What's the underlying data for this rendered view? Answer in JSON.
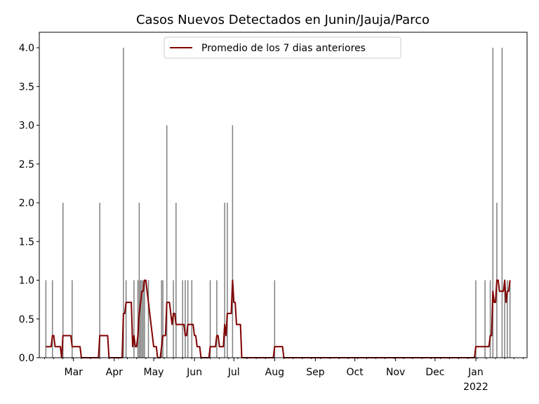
{
  "chart_data": {
    "type": "bar",
    "title": "Casos Nuevos Detectados en Junin/Jauja/Parco",
    "xlabel": "",
    "ylabel": "",
    "x_range": [
      "2021-02-03",
      "2022-02-09"
    ],
    "ylim": [
      0,
      4.2
    ],
    "y_ticks": [
      "0.0",
      "0.5",
      "1.0",
      "1.5",
      "2.0",
      "2.5",
      "3.0",
      "3.5",
      "4.0"
    ],
    "x_ticks": [
      {
        "date": "2021-03-01",
        "label": "Mar"
      },
      {
        "date": "2021-04-01",
        "label": "Apr"
      },
      {
        "date": "2021-05-01",
        "label": "May"
      },
      {
        "date": "2021-06-01",
        "label": "Jun"
      },
      {
        "date": "2021-07-01",
        "label": "Jul"
      },
      {
        "date": "2021-08-01",
        "label": "Aug"
      },
      {
        "date": "2021-09-01",
        "label": "Sep"
      },
      {
        "date": "2021-10-01",
        "label": "Oct"
      },
      {
        "date": "2021-11-01",
        "label": "Nov"
      },
      {
        "date": "2021-12-01",
        "label": "Dec"
      },
      {
        "date": "2022-01-01",
        "label": "Jan",
        "sublabel": "2022"
      }
    ],
    "grid": false,
    "legend_position": "upper center",
    "bar_color": "#808080",
    "line_color": "#800000",
    "series": [
      {
        "name": "",
        "kind": "bars",
        "points": [
          [
            "2021-02-08",
            1
          ],
          [
            "2021-02-13",
            1
          ],
          [
            "2021-02-21",
            2
          ],
          [
            "2021-02-28",
            1
          ],
          [
            "2021-03-21",
            2
          ],
          [
            "2021-04-08",
            4
          ],
          [
            "2021-04-10",
            1
          ],
          [
            "2021-04-16",
            1
          ],
          [
            "2021-04-19",
            1
          ],
          [
            "2021-04-20",
            2
          ],
          [
            "2021-04-21",
            1
          ],
          [
            "2021-04-22",
            1
          ],
          [
            "2021-04-23",
            1
          ],
          [
            "2021-04-24",
            1
          ],
          [
            "2021-04-27",
            1
          ],
          [
            "2021-05-07",
            1
          ],
          [
            "2021-05-08",
            1
          ],
          [
            "2021-05-11",
            3
          ],
          [
            "2021-05-16",
            1
          ],
          [
            "2021-05-18",
            2
          ],
          [
            "2021-05-23",
            1
          ],
          [
            "2021-05-25",
            1
          ],
          [
            "2021-05-27",
            1
          ],
          [
            "2021-05-30",
            1
          ],
          [
            "2021-06-13",
            1
          ],
          [
            "2021-06-18",
            1
          ],
          [
            "2021-06-24",
            2
          ],
          [
            "2021-06-26",
            2
          ],
          [
            "2021-06-30",
            3
          ],
          [
            "2021-08-01",
            1
          ],
          [
            "2022-01-01",
            1
          ],
          [
            "2022-01-08",
            1
          ],
          [
            "2022-01-12",
            1
          ],
          [
            "2022-01-14",
            4
          ],
          [
            "2022-01-17",
            2
          ],
          [
            "2022-01-21",
            4
          ],
          [
            "2022-01-23",
            1
          ],
          [
            "2022-01-25",
            1
          ],
          [
            "2022-01-27",
            1
          ]
        ]
      },
      {
        "name": "Promedio de los 7 dias anteriores",
        "kind": "line"
      }
    ]
  }
}
